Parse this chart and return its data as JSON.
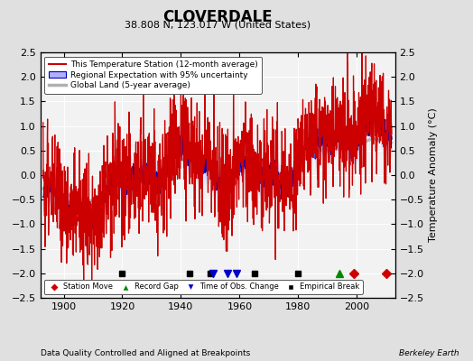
{
  "title": "CLOVERDALE",
  "subtitle": "38.808 N, 123.017 W (United States)",
  "ylabel": "Temperature Anomaly (°C)",
  "xlabel_note": "Data Quality Controlled and Aligned at Breakpoints",
  "credit": "Berkeley Earth",
  "ylim": [
    -2.5,
    2.5
  ],
  "xlim": [
    1892,
    2013
  ],
  "yticks": [
    -2.5,
    -2,
    -1.5,
    -1,
    -0.5,
    0,
    0.5,
    1,
    1.5,
    2,
    2.5
  ],
  "xticks": [
    1900,
    1920,
    1940,
    1960,
    1980,
    2000
  ],
  "bg_color": "#e0e0e0",
  "plot_bg_color": "#f2f2f2",
  "red_color": "#cc0000",
  "blue_color": "#0000bb",
  "blue_band_color": "#b0b0ff",
  "gray_color": "#b0b0b0",
  "legend_labels": [
    "This Temperature Station (12-month average)",
    "Regional Expectation with 95% uncertainty",
    "Global Land (5-year average)"
  ],
  "marker_events": {
    "station_move": {
      "years": [
        1999,
        2010
      ],
      "color": "#cc0000",
      "marker": "D"
    },
    "record_gap": {
      "years": [
        1994
      ],
      "color": "#008800",
      "marker": "^"
    },
    "time_obs_change": {
      "years": [
        1951,
        1956,
        1959
      ],
      "color": "#0000cc",
      "marker": "v"
    },
    "empirical_break": {
      "years": [
        1920,
        1943,
        1950,
        1965,
        1980
      ],
      "color": "#000000",
      "marker": "s"
    }
  }
}
